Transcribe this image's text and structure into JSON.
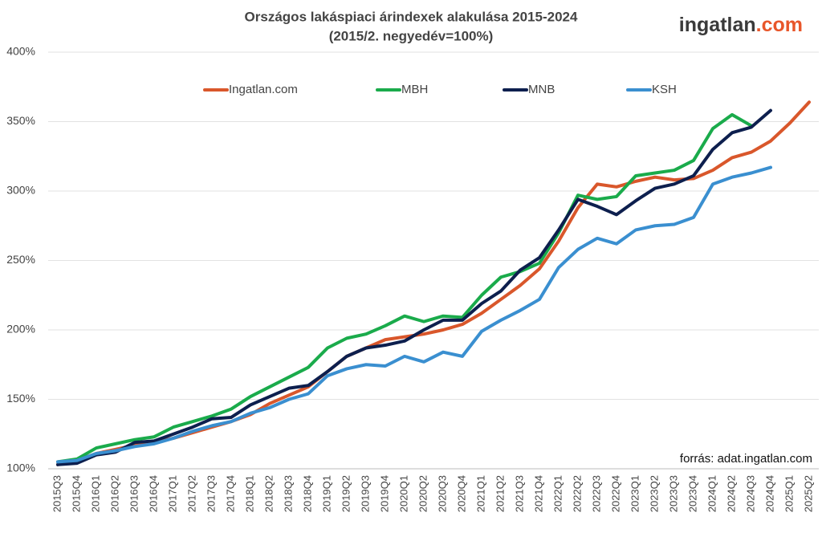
{
  "chart_data": {
    "type": "line",
    "title": "Országos lakáspiaci árindexek alakulása 2015-2024",
    "subtitle": "(2015/2. negyedév=100%)",
    "logo": {
      "name": "ingatlan",
      "suffix": ".com"
    },
    "annotation": "forrás: adat.ingatlan.com",
    "categories": [
      "2015Q3",
      "2015Q4",
      "2016Q1",
      "2016Q2",
      "2016Q3",
      "2016Q4",
      "2017Q1",
      "2017Q2",
      "2017Q3",
      "2017Q4",
      "2018Q1",
      "2018Q2",
      "2018Q3",
      "2018Q4",
      "2019Q1",
      "2019Q2",
      "2019Q3",
      "2019Q4",
      "2020Q1",
      "2020Q2",
      "2020Q3",
      "2020Q4",
      "2021Q1",
      "2021Q2",
      "2021Q3",
      "2021Q4",
      "2022Q1",
      "2022Q2",
      "2022Q3",
      "2022Q4",
      "2023Q1",
      "2023Q2",
      "2023Q3",
      "2023Q4",
      "2024Q1",
      "2024Q2",
      "2024Q3",
      "2024Q4",
      "2025Q1",
      "2025Q2"
    ],
    "series": [
      {
        "name": "Ingatlan.com",
        "color": "#d9572b",
        "values": [
          103,
          106,
          111,
          114,
          117,
          119,
          122,
          126,
          130,
          134,
          139,
          147,
          153,
          159,
          170,
          181,
          187,
          193,
          195,
          197,
          200,
          204,
          212,
          222,
          232,
          244,
          264,
          288,
          305,
          303,
          307,
          310,
          308,
          309,
          315,
          324,
          328,
          336,
          349,
          364
        ]
      },
      {
        "name": "MBH",
        "color": "#1aab4b",
        "values": [
          105,
          107,
          115,
          118,
          121,
          123,
          130,
          134,
          138,
          143,
          152,
          159,
          166,
          173,
          187,
          194,
          197,
          203,
          210,
          206,
          210,
          209,
          225,
          238,
          242,
          248,
          270,
          297,
          294,
          296,
          311,
          313,
          315,
          322,
          345,
          355,
          347,
          null,
          null,
          null
        ]
      },
      {
        "name": "MNB",
        "color": "#0d1f4e",
        "values": [
          103,
          104,
          110,
          112,
          119,
          120,
          125,
          130,
          136,
          137,
          146,
          152,
          158,
          160,
          170,
          181,
          187,
          189,
          192,
          200,
          207,
          207,
          219,
          228,
          243,
          252,
          272,
          294,
          289,
          283,
          293,
          302,
          305,
          311,
          330,
          342,
          346,
          358,
          null,
          null
        ]
      },
      {
        "name": "KSH",
        "color": "#3a8fd0",
        "values": [
          105,
          106,
          111,
          113,
          116,
          118,
          122,
          127,
          131,
          134,
          140,
          144,
          150,
          154,
          167,
          172,
          175,
          174,
          181,
          177,
          184,
          181,
          199,
          207,
          214,
          222,
          245,
          258,
          266,
          262,
          272,
          275,
          276,
          281,
          305,
          310,
          313,
          317,
          null,
          null
        ]
      }
    ],
    "ylim": [
      100,
      400
    ],
    "yticks": [
      {
        "value": 100,
        "label": "100%"
      },
      {
        "value": 150,
        "label": "150%"
      },
      {
        "value": 200,
        "label": "200%"
      },
      {
        "value": 250,
        "label": "250%"
      },
      {
        "value": 300,
        "label": "300%"
      },
      {
        "value": 350,
        "label": "350%"
      },
      {
        "value": 400,
        "label": "400%"
      }
    ],
    "grid": true,
    "legend": "top"
  }
}
